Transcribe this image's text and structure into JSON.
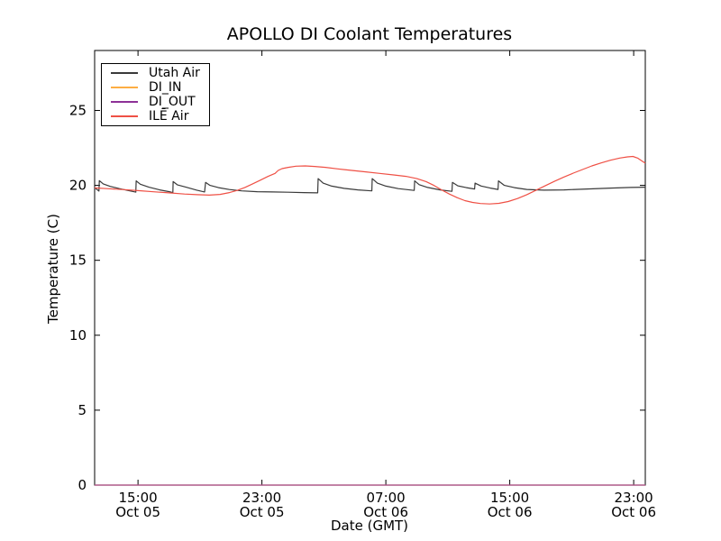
{
  "chart_data": {
    "type": "line",
    "title": "APOLLO DI Coolant Temperatures",
    "xlabel": "Date (GMT)",
    "ylabel": "Temperature (C)",
    "grid": false,
    "legend_position": "upper left",
    "x_unit": "hours since Oct 05 00:00 GMT",
    "xlim": [
      12.2,
      47.75
    ],
    "ylim": [
      0,
      29
    ],
    "y_ticks": [
      0,
      5,
      10,
      15,
      20,
      25
    ],
    "x_ticks": [
      {
        "value": 15,
        "time": "15:00",
        "date": "Oct 05"
      },
      {
        "value": 23,
        "time": "23:00",
        "date": "Oct 05"
      },
      {
        "value": 31,
        "time": "07:00",
        "date": "Oct 06"
      },
      {
        "value": 39,
        "time": "15:00",
        "date": "Oct 06"
      },
      {
        "value": 47,
        "time": "23:00",
        "date": "Oct 06"
      }
    ],
    "series": [
      {
        "name": "Utah Air",
        "color": "#3a3a3a",
        "points": [
          [
            12.2,
            19.85
          ],
          [
            12.35,
            19.72
          ],
          [
            12.48,
            19.62
          ],
          [
            12.5,
            20.32
          ],
          [
            12.75,
            20.1
          ],
          [
            13.2,
            19.93
          ],
          [
            13.8,
            19.78
          ],
          [
            14.4,
            19.65
          ],
          [
            14.86,
            19.55
          ],
          [
            14.88,
            20.3
          ],
          [
            15.15,
            20.08
          ],
          [
            15.7,
            19.88
          ],
          [
            16.4,
            19.7
          ],
          [
            17.1,
            19.56
          ],
          [
            17.25,
            19.52
          ],
          [
            17.27,
            20.25
          ],
          [
            17.55,
            20.03
          ],
          [
            18.1,
            19.88
          ],
          [
            18.8,
            19.68
          ],
          [
            19.3,
            19.56
          ],
          [
            19.36,
            20.2
          ],
          [
            19.65,
            20.0
          ],
          [
            20.2,
            19.85
          ],
          [
            20.9,
            19.72
          ],
          [
            21.7,
            19.63
          ],
          [
            22.7,
            19.58
          ],
          [
            23.7,
            19.56
          ],
          [
            24.7,
            19.54
          ],
          [
            25.7,
            19.52
          ],
          [
            26.6,
            19.5
          ],
          [
            26.63,
            20.45
          ],
          [
            26.95,
            20.15
          ],
          [
            27.5,
            19.95
          ],
          [
            28.3,
            19.8
          ],
          [
            29.2,
            19.7
          ],
          [
            30.1,
            19.63
          ],
          [
            30.12,
            20.45
          ],
          [
            30.45,
            20.15
          ],
          [
            31.0,
            19.95
          ],
          [
            31.8,
            19.78
          ],
          [
            32.83,
            19.66
          ],
          [
            32.86,
            20.3
          ],
          [
            33.15,
            20.05
          ],
          [
            33.7,
            19.86
          ],
          [
            34.5,
            19.7
          ],
          [
            35.27,
            19.6
          ],
          [
            35.3,
            20.2
          ],
          [
            35.65,
            19.97
          ],
          [
            36.2,
            19.85
          ],
          [
            36.73,
            19.76
          ],
          [
            36.76,
            20.15
          ],
          [
            37.15,
            19.96
          ],
          [
            37.75,
            19.82
          ],
          [
            38.24,
            19.73
          ],
          [
            38.27,
            20.3
          ],
          [
            38.65,
            20.0
          ],
          [
            39.3,
            19.85
          ],
          [
            40.1,
            19.73
          ],
          [
            41.2,
            19.68
          ],
          [
            42.5,
            19.7
          ],
          [
            44.0,
            19.76
          ],
          [
            45.5,
            19.82
          ],
          [
            46.8,
            19.86
          ],
          [
            47.75,
            19.88
          ]
        ]
      },
      {
        "name": "DI_IN",
        "color": "#fdae43",
        "points": [
          [
            12.2,
            0
          ],
          [
            47.75,
            0
          ]
        ]
      },
      {
        "name": "DI_OUT",
        "color": "#8d3197",
        "opacity": 0.85,
        "points": [
          [
            12.2,
            0
          ],
          [
            47.75,
            0
          ]
        ]
      },
      {
        "name": "ILĒ Air",
        "color": "#ef5045",
        "points": [
          [
            12.2,
            19.83
          ],
          [
            13.0,
            19.78
          ],
          [
            14.0,
            19.72
          ],
          [
            15.0,
            19.65
          ],
          [
            16.0,
            19.57
          ],
          [
            17.0,
            19.5
          ],
          [
            18.0,
            19.42
          ],
          [
            18.8,
            19.38
          ],
          [
            19.6,
            19.35
          ],
          [
            20.3,
            19.4
          ],
          [
            20.9,
            19.52
          ],
          [
            21.4,
            19.66
          ],
          [
            21.9,
            19.86
          ],
          [
            22.4,
            20.1
          ],
          [
            22.9,
            20.35
          ],
          [
            23.4,
            20.6
          ],
          [
            23.85,
            20.8
          ],
          [
            24.05,
            21.0
          ],
          [
            24.3,
            21.12
          ],
          [
            24.7,
            21.2
          ],
          [
            25.2,
            21.28
          ],
          [
            25.8,
            21.3
          ],
          [
            26.4,
            21.26
          ],
          [
            27.1,
            21.2
          ],
          [
            27.9,
            21.1
          ],
          [
            28.8,
            21.0
          ],
          [
            29.7,
            20.9
          ],
          [
            30.6,
            20.8
          ],
          [
            31.5,
            20.7
          ],
          [
            32.3,
            20.6
          ],
          [
            33.0,
            20.45
          ],
          [
            33.6,
            20.25
          ],
          [
            34.1,
            20.0
          ],
          [
            34.6,
            19.7
          ],
          [
            35.1,
            19.42
          ],
          [
            35.6,
            19.18
          ],
          [
            36.1,
            18.98
          ],
          [
            36.6,
            18.86
          ],
          [
            37.1,
            18.79
          ],
          [
            37.7,
            18.76
          ],
          [
            38.3,
            18.8
          ],
          [
            38.9,
            18.92
          ],
          [
            39.5,
            19.12
          ],
          [
            40.1,
            19.38
          ],
          [
            40.7,
            19.68
          ],
          [
            41.3,
            19.98
          ],
          [
            41.9,
            20.28
          ],
          [
            42.5,
            20.56
          ],
          [
            43.1,
            20.82
          ],
          [
            43.7,
            21.06
          ],
          [
            44.3,
            21.3
          ],
          [
            44.9,
            21.5
          ],
          [
            45.5,
            21.68
          ],
          [
            46.1,
            21.82
          ],
          [
            46.6,
            21.9
          ],
          [
            46.95,
            21.93
          ],
          [
            47.25,
            21.82
          ],
          [
            47.55,
            21.62
          ],
          [
            47.75,
            21.48
          ]
        ]
      }
    ]
  }
}
